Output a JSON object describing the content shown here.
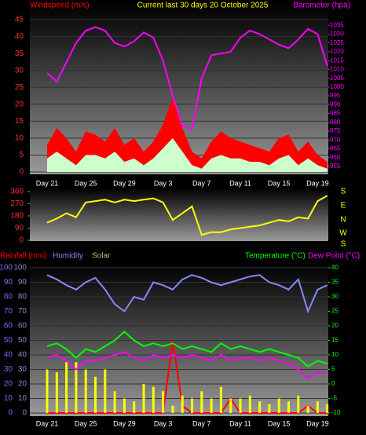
{
  "chart_data": [
    {
      "type": "line",
      "title": "Current last 30 days 20 October 2025",
      "categories": [
        "Day 21",
        null,
        null,
        null,
        "Day 25",
        null,
        null,
        null,
        "Day 29",
        null,
        null,
        null,
        "Day 3",
        null,
        null,
        null,
        "Day 7",
        null,
        null,
        null,
        "Day 11",
        null,
        null,
        null,
        "Day 15",
        null,
        null,
        null,
        "Day 19",
        null
      ],
      "ylim": [
        0,
        45
      ],
      "yticks": [
        0,
        5,
        10,
        15,
        20,
        25,
        30,
        35,
        40,
        45
      ],
      "y2lim": [
        955,
        1040
      ],
      "y2ticks": [
        955,
        960,
        965,
        970,
        975,
        980,
        985,
        990,
        995,
        1000,
        1005,
        1010,
        1015,
        1020,
        1025,
        1030,
        1035
      ],
      "grid": true,
      "series": [
        {
          "name": "Windspeed (m/s)",
          "color": "#ff0000",
          "style": "area",
          "values": [
            8,
            13,
            10,
            6,
            12,
            11,
            9,
            13,
            8,
            10,
            6,
            9,
            14,
            22,
            13,
            6,
            4,
            9,
            12,
            10,
            9,
            8,
            7,
            6,
            10,
            11,
            6,
            9,
            5,
            3
          ]
        },
        {
          "color": "#ccffcc",
          "style": "area",
          "values": [
            4,
            6,
            4,
            2,
            5,
            5,
            4,
            6,
            3,
            4,
            2,
            4,
            7,
            10,
            6,
            2,
            1,
            4,
            5,
            4,
            4,
            3,
            3,
            2,
            4,
            5,
            2,
            4,
            2,
            1
          ]
        },
        {
          "name": "Barometer (hpa)",
          "color": "#ff00ff",
          "style": "line",
          "axis": "y2",
          "values": [
            1008,
            1003,
            1014,
            1025,
            1032,
            1034,
            1032,
            1025,
            1023,
            1026,
            1031,
            1028,
            1015,
            995,
            978,
            976,
            1005,
            1018,
            1019,
            1020,
            1028,
            1032,
            1030,
            1027,
            1024,
            1022,
            1027,
            1033,
            1030,
            1012
          ]
        }
      ]
    },
    {
      "type": "line",
      "ylim": [
        0,
        360
      ],
      "yticks": [
        0,
        90,
        180,
        270,
        360
      ],
      "compass": [
        "S",
        "E",
        "N",
        "W",
        "S"
      ],
      "series": [
        {
          "color": "#ffff00",
          "style": "line",
          "values": [
            130,
            160,
            200,
            170,
            280,
            290,
            300,
            280,
            300,
            290,
            300,
            310,
            280,
            150,
            200,
            250,
            40,
            60,
            60,
            80,
            90,
            100,
            110,
            130,
            150,
            140,
            170,
            160,
            290,
            330
          ]
        }
      ]
    },
    {
      "type": "line",
      "categories": [
        "Day 21",
        null,
        null,
        null,
        "Day 25",
        null,
        null,
        null,
        "Day 29",
        null,
        null,
        null,
        "Day 3",
        null,
        null,
        null,
        "Day 7",
        null,
        null,
        null,
        "Day 11",
        null,
        null,
        null,
        "Day 15",
        null,
        null,
        null,
        "Day 19",
        null
      ],
      "ylim": [
        0,
        100
      ],
      "yticks": [
        0,
        10,
        20,
        30,
        40,
        50,
        60,
        70,
        80,
        90,
        100
      ],
      "y2lim": [
        -10,
        40
      ],
      "y2ticks": [
        -10,
        -5,
        0,
        5,
        10,
        15,
        20,
        25,
        30,
        35,
        40
      ],
      "grid": true,
      "series": [
        {
          "name": "Rainfall (mm)",
          "color": "#ff0000",
          "style": "line",
          "values": [
            0,
            0,
            0,
            0,
            0,
            0,
            0,
            0,
            0,
            0,
            0,
            0,
            0,
            50,
            5,
            0,
            0,
            0,
            0,
            10,
            0,
            0,
            0,
            0,
            0,
            0,
            0,
            5,
            0,
            0
          ]
        },
        {
          "name": "Humidity",
          "color": "#8888ff",
          "style": "line",
          "values": [
            95,
            92,
            88,
            85,
            90,
            93,
            85,
            75,
            70,
            80,
            78,
            90,
            88,
            85,
            92,
            95,
            93,
            90,
            88,
            90,
            92,
            94,
            95,
            90,
            88,
            85,
            92,
            70,
            85,
            88
          ]
        },
        {
          "name": "Solar",
          "color": "#c8b482",
          "style": "bar",
          "values": [
            30,
            28,
            35,
            35,
            30,
            25,
            30,
            15,
            10,
            8,
            20,
            18,
            15,
            5,
            12,
            10,
            15,
            10,
            18,
            10,
            10,
            12,
            8,
            6,
            10,
            8,
            12,
            5,
            8,
            6
          ]
        },
        {
          "name": "Temperature (°C)",
          "color": "#00ff00",
          "style": "line",
          "axis": "y2",
          "values": [
            13,
            14,
            12,
            9,
            12,
            11,
            13,
            15,
            18,
            15,
            13,
            14,
            13,
            14,
            12,
            13,
            12,
            11,
            14,
            12,
            13,
            12,
            11,
            12,
            11,
            10,
            9,
            6,
            8,
            7
          ]
        },
        {
          "name": "Dew Point (°C)",
          "color": "#ff00ff",
          "style": "line",
          "axis": "y2",
          "values": [
            9,
            10,
            8,
            5,
            8,
            8,
            9,
            10,
            11,
            9,
            8,
            10,
            9,
            10,
            9,
            10,
            9,
            8,
            10,
            8,
            9,
            9,
            8,
            9,
            8,
            7,
            5,
            2,
            4,
            4
          ]
        }
      ]
    }
  ]
}
